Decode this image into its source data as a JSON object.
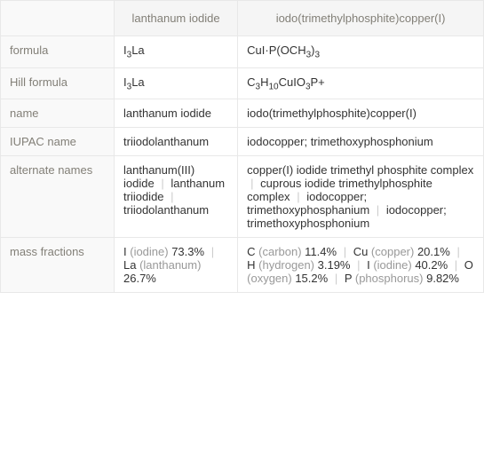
{
  "columnHeaders": [
    "lanthanum iodide",
    "iodo(trimethylphosphite)copper(I)"
  ],
  "rows": [
    {
      "label": "formula",
      "col1": "I_3_La",
      "col2": "CuI·P(OCH_3_)_3_"
    },
    {
      "label": "Hill formula",
      "col1": "I_3_La",
      "col2": "C_3_H_10_CuIO_3_P+"
    },
    {
      "label": "name",
      "col1": "lanthanum iodide",
      "col2": "iodo(trimethylphosphite)copper(I)"
    },
    {
      "label": "IUPAC name",
      "col1": "triiodolanthanum",
      "col2": "iodocopper; trimethoxyphosphonium"
    },
    {
      "label": "alternate names",
      "col1": [
        "lanthanum(III) iodide",
        "lanthanum triiodide",
        "triiodolanthanum"
      ],
      "col2": [
        "copper(I) iodide trimethyl phosphite complex",
        "cuprous iodide trimethylphosphite complex",
        "iodocopper; trimethoxyphosphanium",
        "iodocopper; trimethoxyphosphonium"
      ]
    },
    {
      "label": "mass fractions",
      "col1": [
        {
          "el": "I",
          "name": "iodine",
          "pct": "73.3%"
        },
        {
          "el": "La",
          "name": "lanthanum",
          "pct": "26.7%"
        }
      ],
      "col2": [
        {
          "el": "C",
          "name": "carbon",
          "pct": "11.4%"
        },
        {
          "el": "Cu",
          "name": "copper",
          "pct": "20.1%"
        },
        {
          "el": "H",
          "name": "hydrogen",
          "pct": "3.19%"
        },
        {
          "el": "I",
          "name": "iodine",
          "pct": "40.2%"
        },
        {
          "el": "O",
          "name": "oxygen",
          "pct": "15.2%"
        },
        {
          "el": "P",
          "name": "phosphorus",
          "pct": "9.82%"
        }
      ]
    }
  ]
}
